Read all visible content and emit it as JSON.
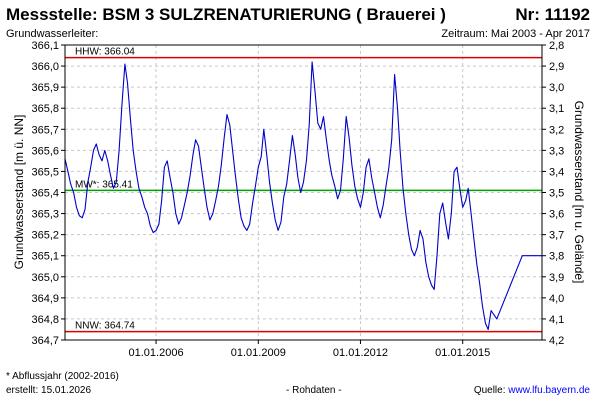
{
  "header": {
    "title": "Messstelle: BSM 3 SULZRENATURIERUNG ( Brauerei )",
    "station_no": "Nr: 11192",
    "subtitle_left": "Grundwasserleiter:",
    "subtitle_right": "Zeitraum: Mai 2003 - Apr 2017"
  },
  "footer": {
    "footnote": "* Abflussjahr (2002-2016)",
    "created": "erstellt:  15.01.2026",
    "raw_data": "- Rohdaten -",
    "source_label": "Quelle: ",
    "source_link": "www.lfu.bayern.de"
  },
  "chart_data": {
    "type": "line",
    "title": "",
    "ylabel": "Grundwasserstand [m ü. NN]",
    "ylabel_right": "Grundwasserstand [m u. Gelände]",
    "ylim": [
      364.7,
      366.1
    ],
    "ylim_right": [
      4.2,
      2.8
    ],
    "xlim": [
      "2003-05-01",
      "2017-04-30"
    ],
    "yticks": [
      "366,1",
      "366,0",
      "365,9",
      "365,8",
      "365,7",
      "365,6",
      "365,5",
      "365,4",
      "365,3",
      "365,2",
      "365,1",
      "365,0",
      "364,9",
      "364,8",
      "364,7"
    ],
    "yticks_right": [
      "2,8",
      "2,9",
      "3,0",
      "3,1",
      "3,2",
      "3,3",
      "3,4",
      "3,5",
      "3,6",
      "3,7",
      "3,8",
      "3,9",
      "4,0",
      "4,1",
      "4,2"
    ],
    "xticks": [
      {
        "date": "2006-01-01",
        "label": "01.01.2006"
      },
      {
        "date": "2009-01-01",
        "label": "01.01.2009"
      },
      {
        "date": "2012-01-01",
        "label": "01.01.2012"
      },
      {
        "date": "2015-01-01",
        "label": "01.01.2015"
      }
    ],
    "grid": true,
    "reference_lines": [
      {
        "label": "HHW: 366.04",
        "value": 366.04,
        "color": "#e00000"
      },
      {
        "label": "MW*: 365.41",
        "value": 365.41,
        "color": "#00a000"
      },
      {
        "label": "NNW: 364.74",
        "value": 364.74,
        "color": "#e00000"
      }
    ],
    "series": [
      {
        "color": "#0000cc",
        "points": [
          [
            "2003-05-01",
            365.56
          ],
          [
            "2003-06-01",
            365.5
          ],
          [
            "2003-07-01",
            365.44
          ],
          [
            "2003-08-01",
            365.4
          ],
          [
            "2003-09-01",
            365.33
          ],
          [
            "2003-10-01",
            365.29
          ],
          [
            "2003-11-01",
            365.28
          ],
          [
            "2003-12-01",
            365.32
          ],
          [
            "2004-01-01",
            365.45
          ],
          [
            "2004-02-01",
            365.52
          ],
          [
            "2004-03-01",
            365.6
          ],
          [
            "2004-04-01",
            365.63
          ],
          [
            "2004-05-01",
            365.58
          ],
          [
            "2004-06-01",
            365.55
          ],
          [
            "2004-07-01",
            365.6
          ],
          [
            "2004-08-01",
            365.55
          ],
          [
            "2004-09-01",
            365.48
          ],
          [
            "2004-10-01",
            365.42
          ],
          [
            "2004-11-01",
            365.45
          ],
          [
            "2004-12-01",
            365.6
          ],
          [
            "2005-01-01",
            365.82
          ],
          [
            "2005-02-01",
            366.01
          ],
          [
            "2005-03-01",
            365.92
          ],
          [
            "2005-04-01",
            365.75
          ],
          [
            "2005-05-01",
            365.6
          ],
          [
            "2005-06-01",
            365.5
          ],
          [
            "2005-07-01",
            365.42
          ],
          [
            "2005-08-01",
            365.38
          ],
          [
            "2005-09-01",
            365.33
          ],
          [
            "2005-10-01",
            365.3
          ],
          [
            "2005-11-01",
            365.24
          ],
          [
            "2005-12-01",
            365.21
          ],
          [
            "2006-01-01",
            365.22
          ],
          [
            "2006-02-01",
            365.25
          ],
          [
            "2006-03-01",
            365.36
          ],
          [
            "2006-04-01",
            365.52
          ],
          [
            "2006-05-01",
            365.55
          ],
          [
            "2006-06-01",
            365.47
          ],
          [
            "2006-07-01",
            365.4
          ],
          [
            "2006-08-01",
            365.3
          ],
          [
            "2006-09-01",
            365.25
          ],
          [
            "2006-10-01",
            365.28
          ],
          [
            "2006-11-01",
            365.34
          ],
          [
            "2006-12-01",
            365.4
          ],
          [
            "2007-01-01",
            365.48
          ],
          [
            "2007-02-01",
            365.58
          ],
          [
            "2007-03-01",
            365.65
          ],
          [
            "2007-04-01",
            365.62
          ],
          [
            "2007-05-01",
            365.52
          ],
          [
            "2007-06-01",
            365.42
          ],
          [
            "2007-07-01",
            365.33
          ],
          [
            "2007-08-01",
            365.27
          ],
          [
            "2007-09-01",
            365.3
          ],
          [
            "2007-10-01",
            365.36
          ],
          [
            "2007-11-01",
            365.43
          ],
          [
            "2007-12-01",
            365.53
          ],
          [
            "2008-01-01",
            365.66
          ],
          [
            "2008-02-01",
            365.77
          ],
          [
            "2008-03-01",
            365.72
          ],
          [
            "2008-04-01",
            365.6
          ],
          [
            "2008-05-01",
            365.48
          ],
          [
            "2008-06-01",
            365.37
          ],
          [
            "2008-07-01",
            365.28
          ],
          [
            "2008-08-01",
            365.24
          ],
          [
            "2008-09-01",
            365.22
          ],
          [
            "2008-10-01",
            365.25
          ],
          [
            "2008-11-01",
            365.35
          ],
          [
            "2008-12-01",
            365.43
          ],
          [
            "2009-01-01",
            365.52
          ],
          [
            "2009-02-01",
            365.57
          ],
          [
            "2009-03-01",
            365.7
          ],
          [
            "2009-04-01",
            365.58
          ],
          [
            "2009-05-01",
            365.45
          ],
          [
            "2009-06-01",
            365.35
          ],
          [
            "2009-07-01",
            365.27
          ],
          [
            "2009-08-01",
            365.22
          ],
          [
            "2009-09-01",
            365.26
          ],
          [
            "2009-10-01",
            365.38
          ],
          [
            "2009-11-01",
            365.44
          ],
          [
            "2009-12-01",
            365.55
          ],
          [
            "2010-01-01",
            365.67
          ],
          [
            "2010-02-01",
            365.58
          ],
          [
            "2010-03-01",
            365.47
          ],
          [
            "2010-04-01",
            365.4
          ],
          [
            "2010-05-01",
            365.45
          ],
          [
            "2010-06-01",
            365.55
          ],
          [
            "2010-07-01",
            365.72
          ],
          [
            "2010-08-01",
            366.02
          ],
          [
            "2010-09-01",
            365.88
          ],
          [
            "2010-10-01",
            365.73
          ],
          [
            "2010-11-01",
            365.7
          ],
          [
            "2010-12-01",
            365.76
          ],
          [
            "2011-01-01",
            365.65
          ],
          [
            "2011-02-01",
            365.55
          ],
          [
            "2011-03-01",
            365.48
          ],
          [
            "2011-04-01",
            365.43
          ],
          [
            "2011-05-01",
            365.37
          ],
          [
            "2011-06-01",
            365.41
          ],
          [
            "2011-07-01",
            365.56
          ],
          [
            "2011-08-01",
            365.76
          ],
          [
            "2011-09-01",
            365.66
          ],
          [
            "2011-10-01",
            365.53
          ],
          [
            "2011-11-01",
            365.43
          ],
          [
            "2011-12-01",
            365.37
          ],
          [
            "2012-01-01",
            365.33
          ],
          [
            "2012-02-01",
            365.4
          ],
          [
            "2012-03-01",
            365.52
          ],
          [
            "2012-04-01",
            365.56
          ],
          [
            "2012-05-01",
            365.47
          ],
          [
            "2012-06-01",
            365.4
          ],
          [
            "2012-07-01",
            365.33
          ],
          [
            "2012-08-01",
            365.28
          ],
          [
            "2012-09-01",
            365.34
          ],
          [
            "2012-10-01",
            365.43
          ],
          [
            "2012-11-01",
            365.52
          ],
          [
            "2012-12-01",
            365.65
          ],
          [
            "2013-01-01",
            365.96
          ],
          [
            "2013-02-01",
            365.8
          ],
          [
            "2013-03-01",
            365.6
          ],
          [
            "2013-04-01",
            365.42
          ],
          [
            "2013-05-01",
            365.3
          ],
          [
            "2013-06-01",
            365.2
          ],
          [
            "2013-07-01",
            365.13
          ],
          [
            "2013-08-01",
            365.1
          ],
          [
            "2013-09-01",
            365.14
          ],
          [
            "2013-10-01",
            365.22
          ],
          [
            "2013-11-01",
            365.18
          ],
          [
            "2013-12-01",
            365.07
          ],
          [
            "2014-01-01",
            365.0
          ],
          [
            "2014-02-01",
            364.96
          ],
          [
            "2014-03-01",
            364.94
          ],
          [
            "2014-04-01",
            365.1
          ],
          [
            "2014-05-01",
            365.3
          ],
          [
            "2014-06-01",
            365.35
          ],
          [
            "2014-07-01",
            365.26
          ],
          [
            "2014-08-01",
            365.18
          ],
          [
            "2014-09-01",
            365.3
          ],
          [
            "2014-10-01",
            365.5
          ],
          [
            "2014-11-01",
            365.52
          ],
          [
            "2014-12-01",
            365.42
          ],
          [
            "2015-01-01",
            365.33
          ],
          [
            "2015-02-01",
            365.36
          ],
          [
            "2015-03-01",
            365.42
          ],
          [
            "2015-04-01",
            365.3
          ],
          [
            "2015-05-01",
            365.18
          ],
          [
            "2015-06-01",
            365.06
          ],
          [
            "2015-07-01",
            364.97
          ],
          [
            "2015-08-01",
            364.86
          ],
          [
            "2015-09-01",
            364.78
          ],
          [
            "2015-10-01",
            364.75
          ],
          [
            "2015-11-01",
            364.84
          ],
          [
            "2015-12-01",
            364.82
          ],
          [
            "2016-01-01",
            364.8
          ],
          [
            "2016-10-01",
            365.1
          ],
          [
            "2017-04-30",
            365.1
          ]
        ]
      }
    ]
  }
}
